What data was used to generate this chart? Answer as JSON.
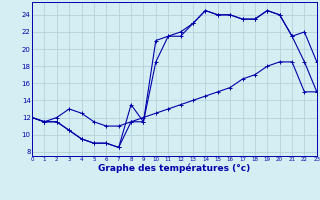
{
  "title": "Graphe des températures (°c)",
  "background_color": "#d4eef4",
  "grid_color": "#b0cdd8",
  "line_color": "#0000aa",
  "xlim": [
    0,
    23
  ],
  "ylim": [
    7.5,
    25.5
  ],
  "xticks": [
    0,
    1,
    2,
    3,
    4,
    5,
    6,
    7,
    8,
    9,
    10,
    11,
    12,
    13,
    14,
    15,
    16,
    17,
    18,
    19,
    20,
    21,
    22,
    23
  ],
  "yticks": [
    8,
    10,
    12,
    14,
    16,
    18,
    20,
    22,
    24
  ],
  "line1_x": [
    0,
    1,
    2,
    3,
    4,
    5,
    6,
    7,
    8,
    9,
    10,
    11,
    12,
    13,
    14,
    15,
    16,
    17,
    18,
    19,
    20,
    21,
    22,
    23
  ],
  "line1_y": [
    12.0,
    11.5,
    11.5,
    10.5,
    9.5,
    9.0,
    9.0,
    8.5,
    11.5,
    11.5,
    21.0,
    21.5,
    21.5,
    23.0,
    24.5,
    24.0,
    24.0,
    23.5,
    23.5,
    24.5,
    24.0,
    21.5,
    18.5,
    15.0
  ],
  "line2_x": [
    0,
    1,
    2,
    3,
    4,
    5,
    6,
    7,
    8,
    9,
    10,
    11,
    12,
    13,
    14,
    15,
    16,
    17,
    18,
    19,
    20,
    21,
    22,
    23
  ],
  "line2_y": [
    12.0,
    11.5,
    11.5,
    10.5,
    9.5,
    9.0,
    9.0,
    8.5,
    13.5,
    11.5,
    18.5,
    21.5,
    22.0,
    23.0,
    24.5,
    24.0,
    24.0,
    23.5,
    23.5,
    24.5,
    24.0,
    21.5,
    22.0,
    18.5
  ],
  "line3_x": [
    0,
    1,
    2,
    3,
    4,
    5,
    6,
    7,
    8,
    9,
    10,
    11,
    12,
    13,
    14,
    15,
    16,
    17,
    18,
    19,
    20,
    21,
    22,
    23
  ],
  "line3_y": [
    12.0,
    11.5,
    12.0,
    13.0,
    12.5,
    11.5,
    11.0,
    11.0,
    11.5,
    12.0,
    12.5,
    13.0,
    13.5,
    14.0,
    14.5,
    15.0,
    15.5,
    16.5,
    17.0,
    18.0,
    18.5,
    18.5,
    15.0,
    15.0
  ]
}
